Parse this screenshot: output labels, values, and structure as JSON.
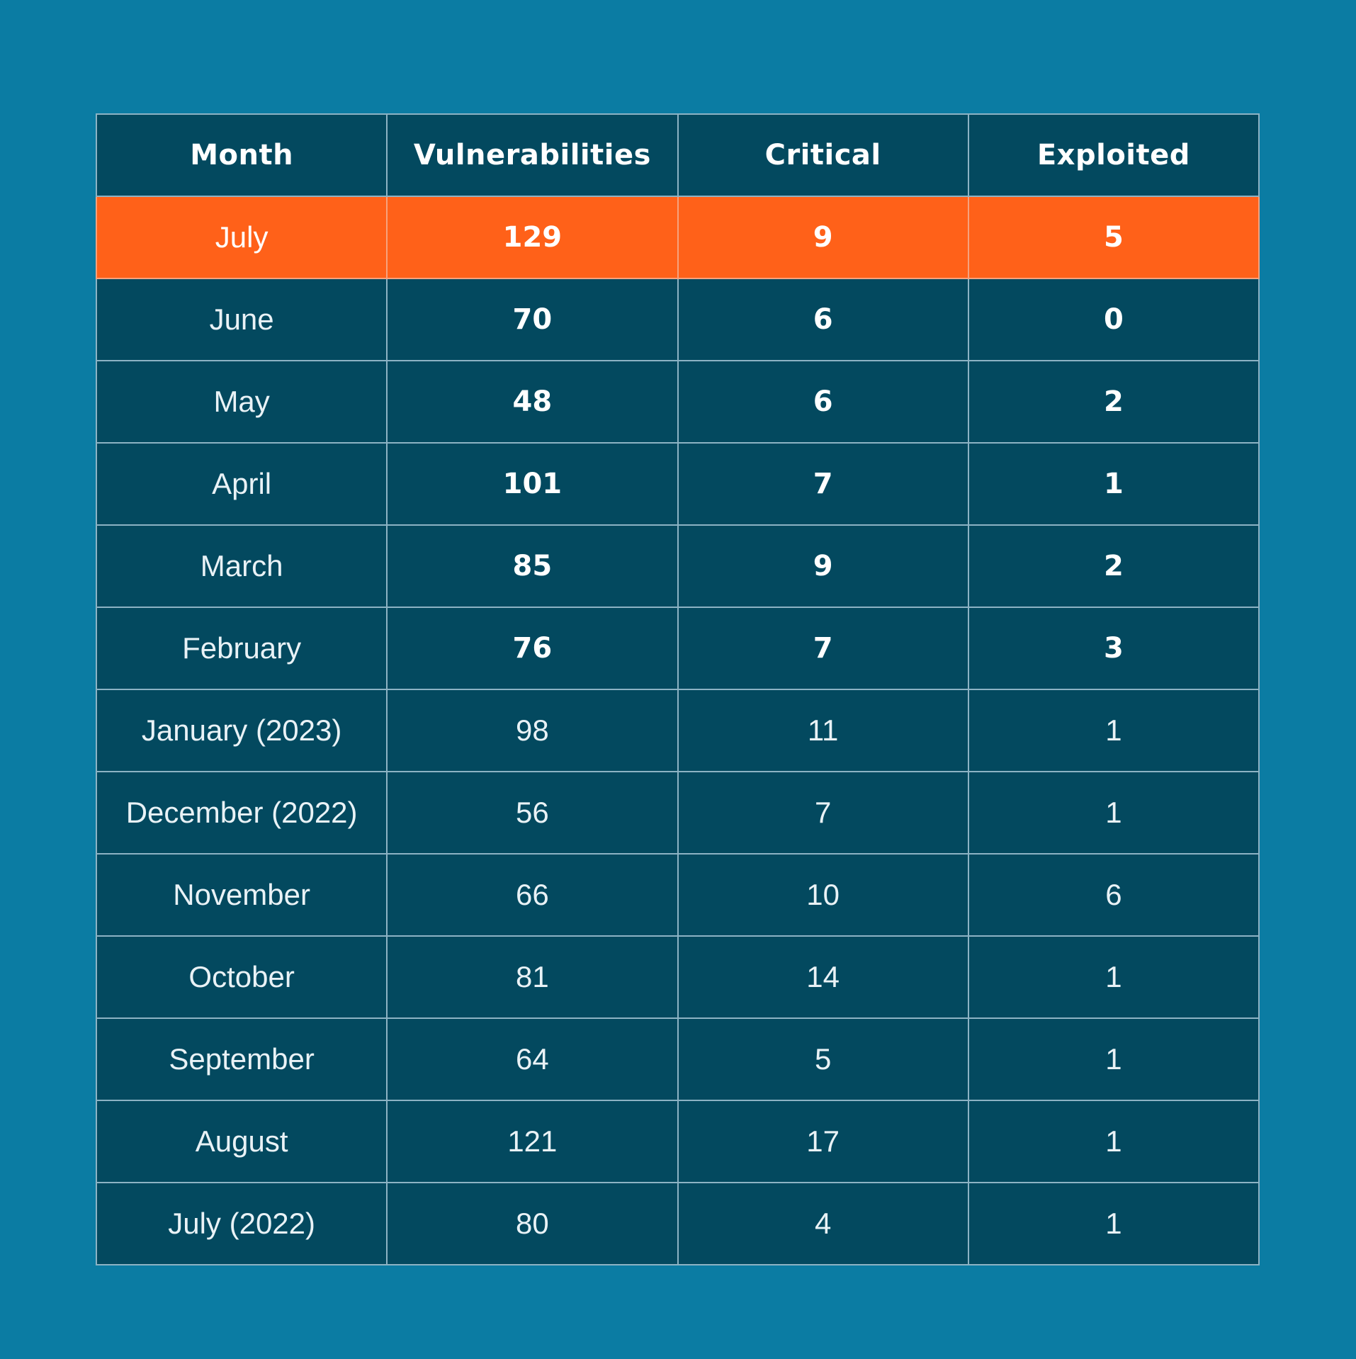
{
  "colors": {
    "background": "#0b7ca3",
    "table_body": "#03495f",
    "highlight_row": "#ff6119",
    "grid_lines": "#8db3c4",
    "text": "#ffffff"
  },
  "chart_data": {
    "type": "table",
    "columns": [
      "Month",
      "Vulnerabilities",
      "Critical",
      "Exploited"
    ],
    "rows": [
      {
        "month": "July",
        "vulnerabilities": "129",
        "critical": "9",
        "exploited": "5",
        "highlight": true
      },
      {
        "month": "June",
        "vulnerabilities": "70",
        "critical": "6",
        "exploited": "0"
      },
      {
        "month": "May",
        "vulnerabilities": "48",
        "critical": "6",
        "exploited": "2"
      },
      {
        "month": "April",
        "vulnerabilities": "101",
        "critical": "7",
        "exploited": "1"
      },
      {
        "month": "March",
        "vulnerabilities": "85",
        "critical": "9",
        "exploited": "2"
      },
      {
        "month": "February",
        "vulnerabilities": "76",
        "critical": "7",
        "exploited": "3"
      },
      {
        "month": "January (2023)",
        "vulnerabilities": "98",
        "critical": "11",
        "exploited": "1"
      },
      {
        "month": "December (2022)",
        "vulnerabilities": "56",
        "critical": "7",
        "exploited": "1"
      },
      {
        "month": "November",
        "vulnerabilities": "66",
        "critical": "10",
        "exploited": "6"
      },
      {
        "month": "October",
        "vulnerabilities": "81",
        "critical": "14",
        "exploited": "1"
      },
      {
        "month": "September",
        "vulnerabilities": "64",
        "critical": "5",
        "exploited": "1"
      },
      {
        "month": "August",
        "vulnerabilities": "121",
        "critical": "17",
        "exploited": "1"
      },
      {
        "month": "July (2022)",
        "vulnerabilities": "80",
        "critical": "4",
        "exploited": "1"
      }
    ]
  }
}
